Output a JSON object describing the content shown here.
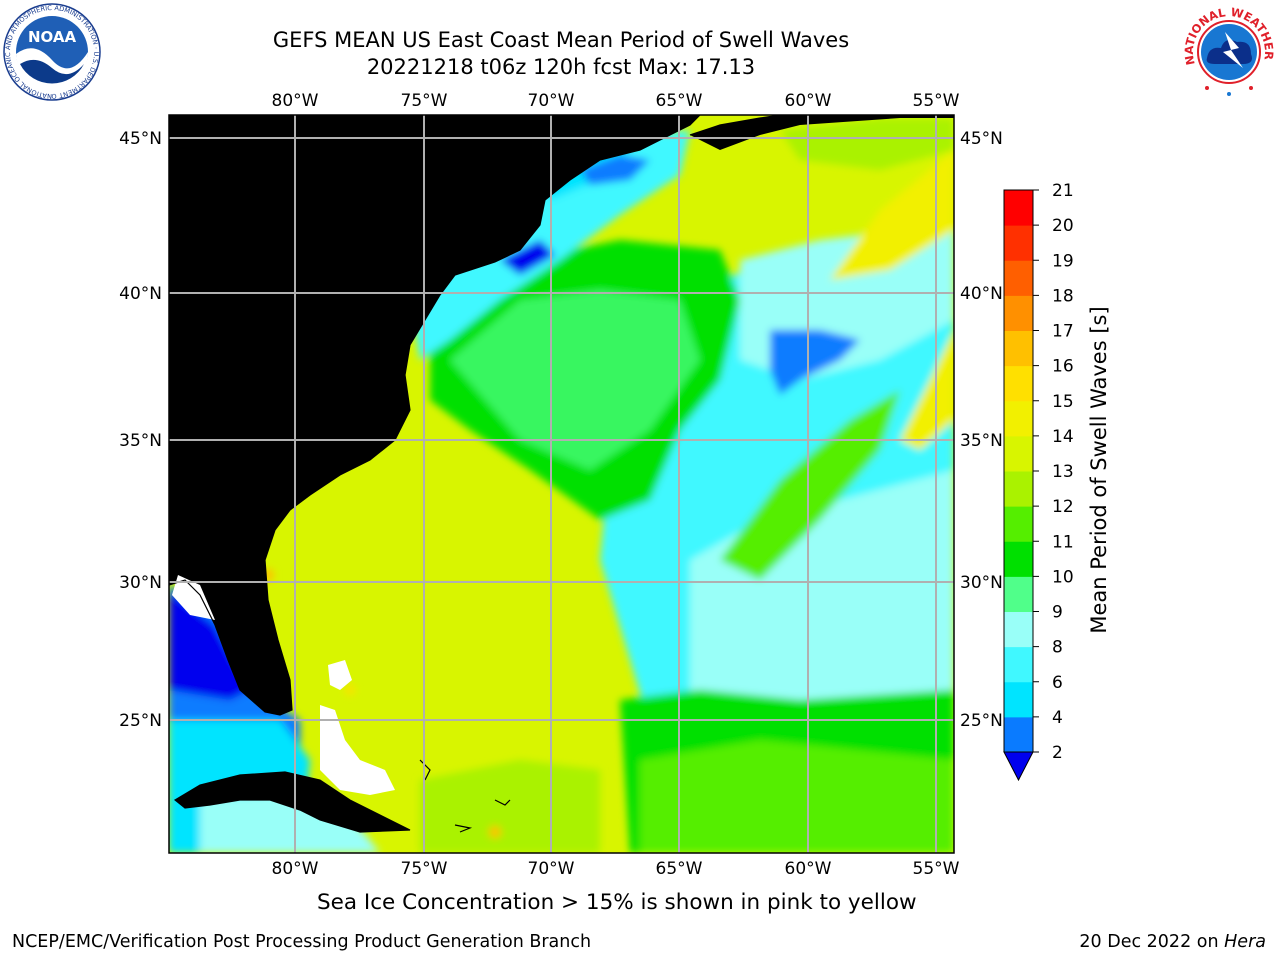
{
  "title": {
    "line1": "GEFS MEAN US East Coast Mean Period of Swell Waves",
    "line2": "20221218 t06z 120h fcst   Max: 17.13"
  },
  "map": {
    "lon_labels": [
      "80°W",
      "75°W",
      "70°W",
      "65°W",
      "60°W",
      "55°W"
    ],
    "lat_labels": [
      "45°N",
      "40°N",
      "35°N",
      "30°N",
      "25°N"
    ],
    "colors": {
      "land": "#efeedd",
      "grid": "#b0b0b0",
      "coast": "#000000"
    }
  },
  "colorbar": {
    "label": "Mean Period of Swell Waves [s]",
    "ticks": [
      "2",
      "4",
      "6",
      "8",
      "9",
      "10",
      "11",
      "12",
      "13",
      "14",
      "15",
      "16",
      "17",
      "18",
      "19",
      "20",
      "21"
    ],
    "colors": [
      "#0000ee",
      "#0a7bff",
      "#00e4ff",
      "#40f8ff",
      "#99fff8",
      "#50ff8a",
      "#00e000",
      "#55ee00",
      "#aaf200",
      "#d8f500",
      "#f2f000",
      "#ffe000",
      "#ffc000",
      "#ff9000",
      "#ff5f00",
      "#ff3000",
      "#ff0000"
    ],
    "extend_color": "#0000ee"
  },
  "caption": "Sea Ice Concentration > 15% is shown in pink to yellow",
  "footer": {
    "credit": "NCEP/EMC/Verification Post Processing Product Generation Branch",
    "date": "20 Dec 2022 on",
    "host": "Hera"
  },
  "logos": {
    "noaa_text": "NOAA",
    "noaa_ring": "NATIONAL OCEANIC AND ATMOSPHERIC ADMINISTRATION · U.S. DEPARTMENT OF COMMERCE",
    "nws_ring": "NATIONAL WEATHER SERVICE"
  }
}
